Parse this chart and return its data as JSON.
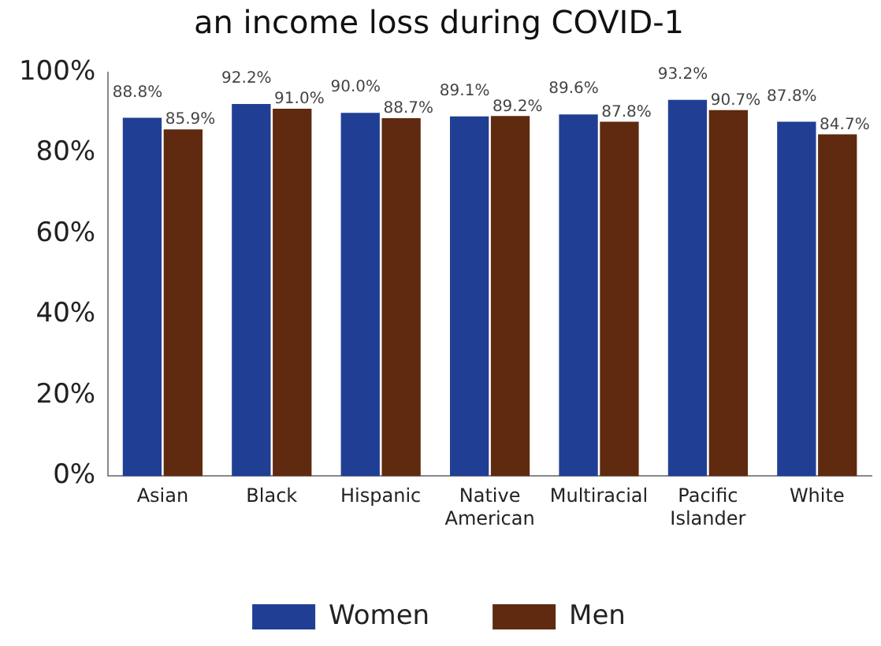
{
  "chart_data": {
    "type": "bar",
    "title": "an income loss during COVID-1",
    "categories": [
      "Asian",
      "Black",
      "Hispanic",
      "Native American",
      "Multiracial",
      "Pacific Islander",
      "White"
    ],
    "series": [
      {
        "name": "Women",
        "color": "#203f94",
        "values": [
          88.8,
          92.2,
          90.0,
          89.1,
          89.6,
          93.2,
          87.8
        ],
        "value_labels": [
          "88.8%",
          "92.2%",
          "90.0%",
          "89.1%",
          "89.6%",
          "93.2%",
          "87.8%"
        ]
      },
      {
        "name": "Men",
        "color": "#5f2a10",
        "values": [
          85.9,
          91.0,
          88.7,
          89.2,
          87.8,
          90.7,
          84.7
        ],
        "value_labels": [
          "85.9%",
          "91.0%",
          "88.7%",
          "89.2%",
          "87.8%",
          "90.7%",
          "84.7%"
        ]
      }
    ],
    "ylim": [
      0,
      100
    ],
    "yticks": [
      {
        "value": 0,
        "label": "0%"
      },
      {
        "value": 20,
        "label": "20%"
      },
      {
        "value": 40,
        "label": "40%"
      },
      {
        "value": 60,
        "label": "60%"
      },
      {
        "value": 80,
        "label": "80%"
      },
      {
        "value": 100,
        "label": "100%"
      }
    ],
    "grid": false,
    "legend": "bottom"
  }
}
